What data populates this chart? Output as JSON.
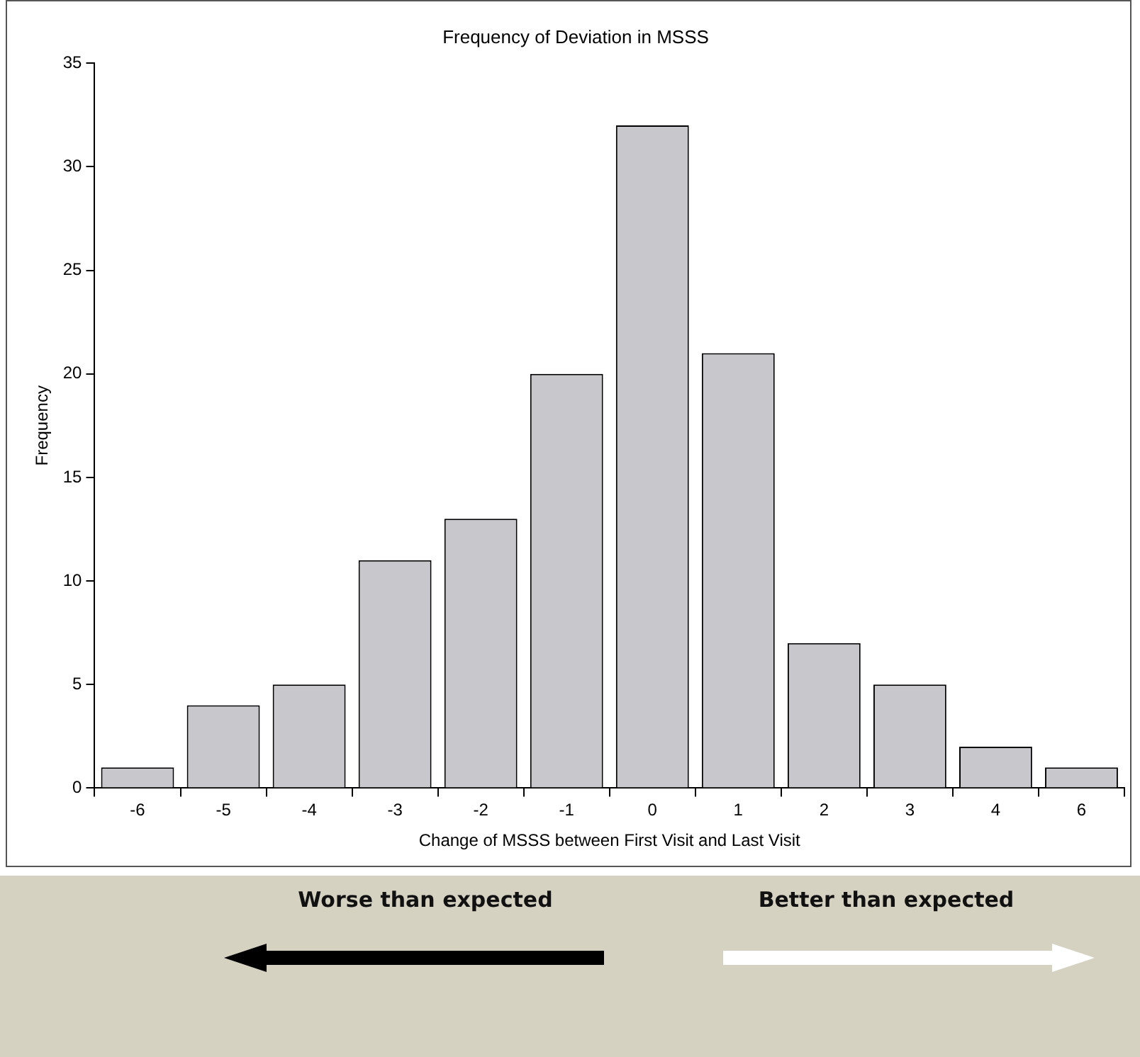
{
  "chart_data": {
    "type": "bar",
    "title": "Frequency of Deviation in MSSS",
    "xlabel": "Change of MSSS between First Visit and Last Visit",
    "ylabel": "Frequency",
    "categories": [
      "-6",
      "-5",
      "-4",
      "-3",
      "-2",
      "-1",
      "0",
      "1",
      "2",
      "3",
      "4",
      "6"
    ],
    "values": [
      1,
      4,
      5,
      11,
      13,
      20,
      32,
      21,
      7,
      5,
      2,
      1
    ],
    "color": "#c8c8cc",
    "ylim": [
      0,
      35
    ],
    "yticks": [
      0,
      5,
      10,
      15,
      20,
      25,
      30,
      35
    ],
    "grid": false,
    "legend": false,
    "annotations": [
      "Worse than expected",
      "Better than expected"
    ]
  }
}
